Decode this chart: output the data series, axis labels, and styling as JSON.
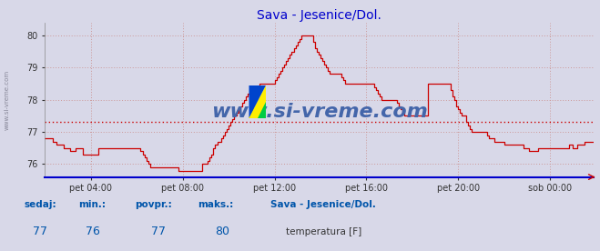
{
  "title": "Sava - Jesenice/Dol.",
  "title_color": "#0000cc",
  "bg_color": "#d8d8e8",
  "plot_bg_color": "#d8d8e8",
  "line_color": "#cc0000",
  "avg_value": 77.3,
  "avg_line_color": "#cc0000",
  "ylim": [
    75.6,
    80.4
  ],
  "yticks": [
    76,
    77,
    78,
    79,
    80
  ],
  "xlim": [
    0,
    287
  ],
  "xtick_positions": [
    24,
    72,
    120,
    168,
    216,
    264
  ],
  "xtick_labels": [
    "pet 04:00",
    "pet 08:00",
    "pet 12:00",
    "pet 16:00",
    "pet 20:00",
    "sob 00:00"
  ],
  "grid_color": "#cc9999",
  "watermark": "www.si-vreme.com",
  "watermark_color": "#4466aa",
  "sidebar_text": "www.si-vreme.com",
  "legend_station": "Sava - Jesenice/Dol.",
  "legend_param": "temperatura [F]",
  "legend_color": "#cc0000",
  "sedaj": 77,
  "min_val": 76,
  "povpr": 77,
  "maks": 80,
  "label_color": "#0055aa",
  "value_color": "#0055aa",
  "data_y": [
    76.8,
    76.8,
    76.8,
    76.8,
    76.7,
    76.7,
    76.6,
    76.6,
    76.6,
    76.6,
    76.5,
    76.5,
    76.5,
    76.4,
    76.4,
    76.4,
    76.5,
    76.5,
    76.5,
    76.5,
    76.3,
    76.3,
    76.3,
    76.3,
    76.3,
    76.3,
    76.3,
    76.3,
    76.5,
    76.5,
    76.5,
    76.5,
    76.5,
    76.5,
    76.5,
    76.5,
    76.5,
    76.5,
    76.5,
    76.5,
    76.5,
    76.5,
    76.5,
    76.5,
    76.5,
    76.5,
    76.5,
    76.5,
    76.5,
    76.5,
    76.4,
    76.3,
    76.2,
    76.1,
    76.0,
    75.9,
    75.9,
    75.9,
    75.9,
    75.9,
    75.9,
    75.9,
    75.9,
    75.9,
    75.9,
    75.9,
    75.9,
    75.9,
    75.9,
    75.9,
    75.8,
    75.8,
    75.8,
    75.8,
    75.8,
    75.8,
    75.8,
    75.8,
    75.8,
    75.8,
    75.8,
    75.8,
    76.0,
    76.0,
    76.0,
    76.1,
    76.2,
    76.3,
    76.5,
    76.6,
    76.7,
    76.7,
    76.8,
    76.9,
    77.0,
    77.1,
    77.2,
    77.3,
    77.4,
    77.5,
    77.6,
    77.7,
    77.8,
    77.9,
    78.0,
    78.1,
    78.2,
    78.2,
    78.3,
    78.3,
    78.4,
    78.4,
    78.5,
    78.5,
    78.5,
    78.5,
    78.5,
    78.5,
    78.5,
    78.5,
    78.6,
    78.7,
    78.8,
    78.9,
    79.0,
    79.1,
    79.2,
    79.3,
    79.4,
    79.5,
    79.6,
    79.7,
    79.8,
    79.9,
    80.0,
    80.0,
    80.0,
    80.0,
    80.0,
    80.0,
    79.8,
    79.6,
    79.5,
    79.4,
    79.3,
    79.2,
    79.1,
    79.0,
    78.9,
    78.8,
    78.8,
    78.8,
    78.8,
    78.8,
    78.8,
    78.7,
    78.6,
    78.5,
    78.5,
    78.5,
    78.5,
    78.5,
    78.5,
    78.5,
    78.5,
    78.5,
    78.5,
    78.5,
    78.5,
    78.5,
    78.5,
    78.5,
    78.4,
    78.3,
    78.2,
    78.1,
    78.0,
    78.0,
    78.0,
    78.0,
    78.0,
    78.0,
    78.0,
    78.0,
    77.9,
    77.8,
    77.7,
    77.6,
    77.5,
    77.5,
    77.5,
    77.5,
    77.5,
    77.5,
    77.5,
    77.5,
    77.5,
    77.5,
    77.5,
    77.5,
    78.5,
    78.5,
    78.5,
    78.5,
    78.5,
    78.5,
    78.5,
    78.5,
    78.5,
    78.5,
    78.5,
    78.5,
    78.3,
    78.1,
    78.0,
    77.8,
    77.7,
    77.6,
    77.5,
    77.5,
    77.3,
    77.2,
    77.1,
    77.0,
    77.0,
    77.0,
    77.0,
    77.0,
    77.0,
    77.0,
    77.0,
    76.9,
    76.8,
    76.8,
    76.8,
    76.7,
    76.7,
    76.7,
    76.7,
    76.7,
    76.6,
    76.6,
    76.6,
    76.6,
    76.6,
    76.6,
    76.6,
    76.6,
    76.6,
    76.6,
    76.5,
    76.5,
    76.5,
    76.4,
    76.4,
    76.4,
    76.4,
    76.4,
    76.5,
    76.5,
    76.5,
    76.5,
    76.5,
    76.5,
    76.5,
    76.5,
    76.5,
    76.5,
    76.5,
    76.5,
    76.5,
    76.5,
    76.5,
    76.5,
    76.6,
    76.6,
    76.5,
    76.5,
    76.6,
    76.6,
    76.6,
    76.6,
    76.7,
    76.7,
    76.7,
    76.7,
    76.7,
    76.7
  ]
}
